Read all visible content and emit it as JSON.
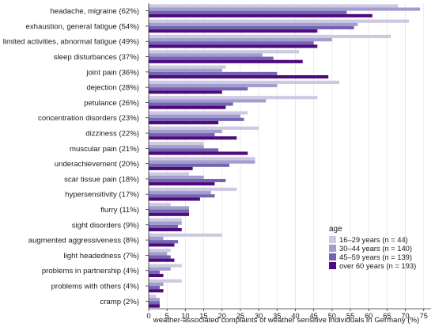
{
  "chart_data": {
    "type": "bar",
    "orientation": "horizontal",
    "xlabel": "weather-associated complaints of weather sensitive individuals in Germany (%)",
    "xlim": [
      0,
      77
    ],
    "xticks": [
      0,
      5,
      10,
      15,
      20,
      25,
      30,
      35,
      40,
      45,
      50,
      55,
      60,
      65,
      70,
      75
    ],
    "grid": true,
    "legend_title": "age",
    "legend_position": "bottom-right",
    "categories": [
      "headache, migraine (62%)",
      "exhaustion, general fatigue (54%)",
      "limited activities, abnormal fatigue (49%)",
      "sleep disturbances (37%)",
      "joint pain (36%)",
      "dejection (28%)",
      "petulance (26%)",
      "concentration disorders (23%)",
      "dizziness (22%)",
      "muscular pain  (21%)",
      "underachievement (20%)",
      "scar tissue pain (18%)",
      "hypersensitivity (17%)",
      "flurry (11%)",
      "sight disorders (9%)",
      "augmented aggressiveness (8%)",
      "light headedness (7%)",
      "problems in partnership (4%)",
      "problems with others (4%)",
      "cramp (2%)"
    ],
    "series": [
      {
        "name": "16–29 years (n = 44)",
        "color": "#cdc9e3",
        "values": [
          68,
          71,
          66,
          41,
          21,
          52,
          46,
          27,
          30,
          15,
          29,
          11,
          24,
          6,
          9,
          20,
          6,
          9,
          9,
          2
        ]
      },
      {
        "name": "30–44 years (n = 140)",
        "color": "#a39ccf",
        "values": [
          74,
          57,
          50,
          31,
          20,
          35,
          32,
          25,
          20,
          15,
          29,
          15,
          17,
          11,
          9,
          4,
          5,
          6,
          4,
          3
        ]
      },
      {
        "name": "45–59 years (n = 139)",
        "color": "#7465b3",
        "values": [
          54,
          56,
          45,
          34,
          35,
          27,
          23,
          26,
          18,
          19,
          22,
          21,
          18,
          11,
          8,
          8,
          6,
          3,
          3,
          3
        ]
      },
      {
        "name": "over 60 years (n = 193)",
        "color": "#4f0a7e",
        "values": [
          61,
          46,
          46,
          42,
          49,
          20,
          21,
          19,
          24,
          27,
          12,
          18,
          14,
          11,
          9,
          7,
          7,
          4,
          4,
          3
        ]
      }
    ]
  }
}
